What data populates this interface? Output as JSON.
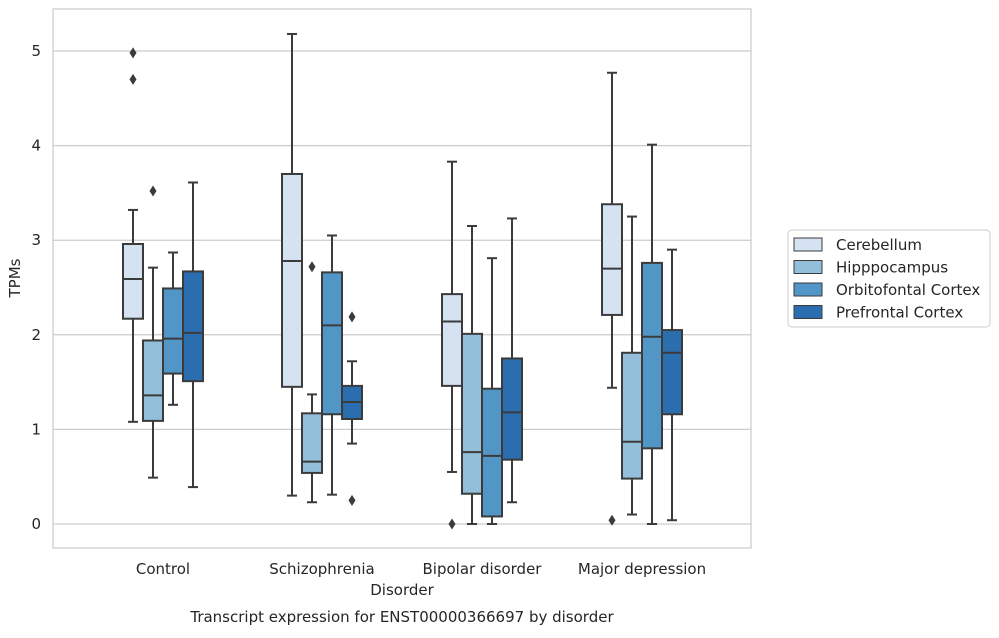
{
  "caption": "Transcript expression for ENST00000366697 by disorder",
  "chart_data": {
    "type": "boxplot",
    "xlabel": "Disorder",
    "ylabel": "TPMs",
    "ylim": [
      -0.25,
      5.4
    ],
    "yticks": [
      0,
      1,
      2,
      3,
      4,
      5
    ],
    "grid": "horizontal",
    "legend_position": "right",
    "categories": [
      "Control",
      "Schizophrenia",
      "Bipolar disorder",
      "Major depression"
    ],
    "series": [
      {
        "name": "Cerebellum",
        "color": "#d4e2f1",
        "boxes": [
          {
            "whislo": 1.08,
            "q1": 2.17,
            "med": 2.59,
            "q3": 2.96,
            "whishi": 3.32,
            "fliers": [
              4.7,
              4.98
            ]
          },
          {
            "whislo": 0.3,
            "q1": 1.45,
            "med": 2.78,
            "q3": 3.7,
            "whishi": 5.18,
            "fliers": []
          },
          {
            "whislo": 0.55,
            "q1": 1.46,
            "med": 2.14,
            "q3": 2.43,
            "whishi": 3.83,
            "fliers": [
              0.0
            ]
          },
          {
            "whislo": 1.44,
            "q1": 2.21,
            "med": 2.7,
            "q3": 3.38,
            "whishi": 4.77,
            "fliers": [
              0.04
            ]
          }
        ]
      },
      {
        "name": "Hipppocampus",
        "color": "#93bfdb",
        "boxes": [
          {
            "whislo": 0.49,
            "q1": 1.09,
            "med": 1.36,
            "q3": 1.94,
            "whishi": 2.71,
            "fliers": [
              3.52
            ]
          },
          {
            "whislo": 0.23,
            "q1": 0.54,
            "med": 0.66,
            "q3": 1.17,
            "whishi": 1.37,
            "fliers": [
              2.72
            ]
          },
          {
            "whislo": 0.0,
            "q1": 0.32,
            "med": 0.76,
            "q3": 2.01,
            "whishi": 3.15,
            "fliers": []
          },
          {
            "whislo": 0.1,
            "q1": 0.48,
            "med": 0.87,
            "q3": 1.81,
            "whishi": 3.25,
            "fliers": []
          }
        ]
      },
      {
        "name": "Orbitofontal Cortex",
        "color": "#5296c8",
        "boxes": [
          {
            "whislo": 1.26,
            "q1": 1.59,
            "med": 1.96,
            "q3": 2.49,
            "whishi": 2.87,
            "fliers": []
          },
          {
            "whislo": 0.31,
            "q1": 1.16,
            "med": 2.1,
            "q3": 2.66,
            "whishi": 3.05,
            "fliers": []
          },
          {
            "whislo": 0.0,
            "q1": 0.08,
            "med": 0.72,
            "q3": 1.43,
            "whishi": 2.81,
            "fliers": []
          },
          {
            "whislo": 0.0,
            "q1": 0.8,
            "med": 1.98,
            "q3": 2.76,
            "whishi": 4.01,
            "fliers": []
          }
        ]
      },
      {
        "name": "Prefrontal Cortex",
        "color": "#2a6eaf",
        "boxes": [
          {
            "whislo": 0.39,
            "q1": 1.51,
            "med": 2.02,
            "q3": 2.67,
            "whishi": 3.61,
            "fliers": []
          },
          {
            "whislo": 0.85,
            "q1": 1.11,
            "med": 1.29,
            "q3": 1.46,
            "whishi": 1.72,
            "fliers": [
              0.25,
              2.19
            ]
          },
          {
            "whislo": 0.23,
            "q1": 0.68,
            "med": 1.18,
            "q3": 1.75,
            "whishi": 3.23,
            "fliers": []
          },
          {
            "whislo": 0.04,
            "q1": 1.16,
            "med": 1.81,
            "q3": 2.05,
            "whishi": 2.9,
            "fliers": []
          }
        ]
      }
    ]
  }
}
